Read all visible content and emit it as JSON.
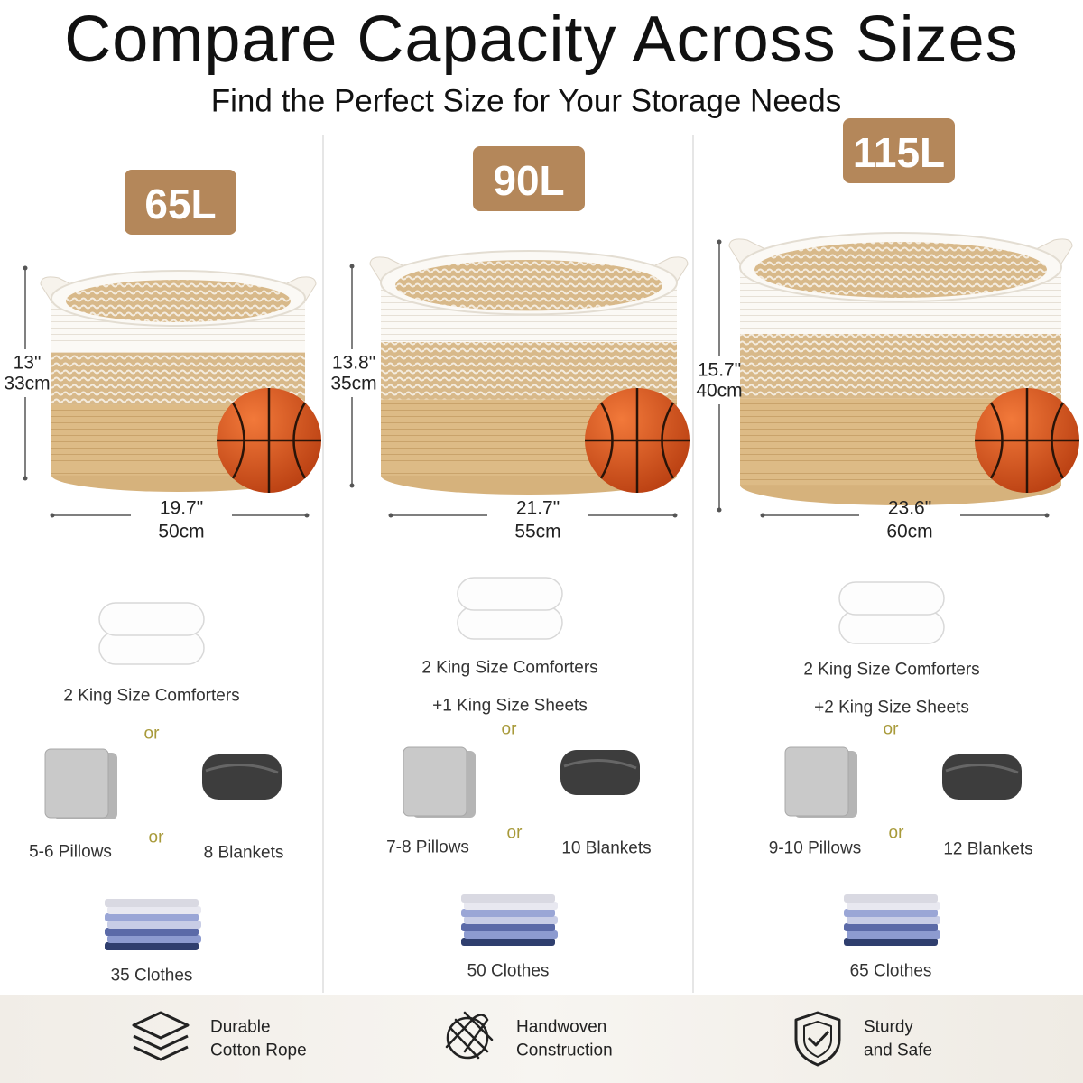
{
  "header": {
    "title": "Compare Capacity Across Sizes",
    "subtitle": "Find the Perfect Size for Your Storage Needs"
  },
  "columns": [
    {
      "capacity": "65L",
      "height_in": "13\"",
      "height_cm": "33cm",
      "width_in": "19.7\"",
      "width_cm": "50cm",
      "comforters": "2 King Size Comforters",
      "or_1": "or",
      "pillows": "5-6 Pillows",
      "or_2": "or",
      "blankets": "8 Blankets",
      "clothes": "35 Clothes"
    },
    {
      "capacity": "90L",
      "height_in": "13.8\"",
      "height_cm": "35cm",
      "width_in": "21.7\"",
      "width_cm": "55cm",
      "comforters": "2 King Size Comforters",
      "sheets": "+1 King Size Sheets",
      "or_1": "or",
      "pillows": "7-8 Pillows",
      "or_2": "or",
      "blankets": "10 Blankets",
      "clothes": "50 Clothes"
    },
    {
      "capacity": "115L",
      "height_in": "15.7\"",
      "height_cm": "40cm",
      "width_in": "23.6\"",
      "width_cm": "60cm",
      "comforters": "2 King Size Comforters",
      "sheets": "+2 King Size Sheets",
      "or_1": "or",
      "pillows": "9-10 Pillows",
      "or_2": "or",
      "blankets": "12 Blankets",
      "clothes": "65 Clothes"
    }
  ],
  "features": [
    {
      "line_1": "Durable",
      "line_2": "Cotton Rope"
    },
    {
      "line_1": "Handwoven",
      "line_2": "Construction"
    },
    {
      "line_1": "Sturdy",
      "line_2": "and Safe"
    }
  ]
}
